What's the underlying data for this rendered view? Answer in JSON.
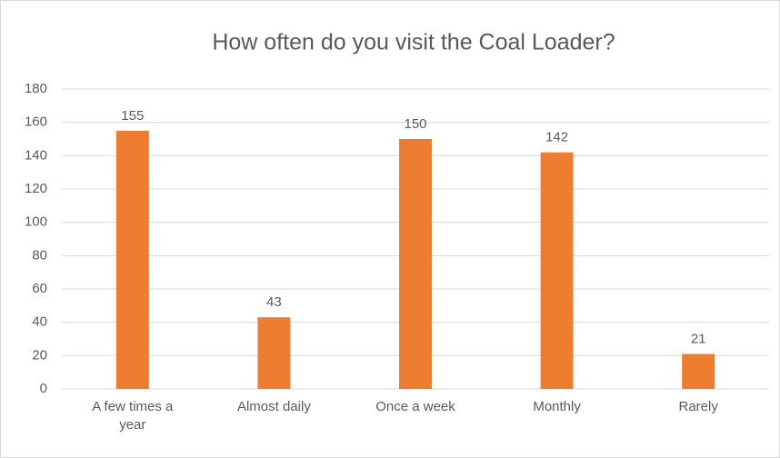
{
  "chart_data": {
    "type": "bar",
    "title": "How often do you visit the Coal Loader?",
    "categories": [
      "A few times a year",
      "Almost daily",
      "Once a week",
      "Monthly",
      "Rarely"
    ],
    "values": [
      155,
      43,
      150,
      142,
      21
    ],
    "color": "#ed7d31",
    "ylim": [
      0,
      180
    ],
    "yticks": [
      0,
      20,
      40,
      60,
      80,
      100,
      120,
      140,
      160,
      180
    ],
    "grid": true
  }
}
